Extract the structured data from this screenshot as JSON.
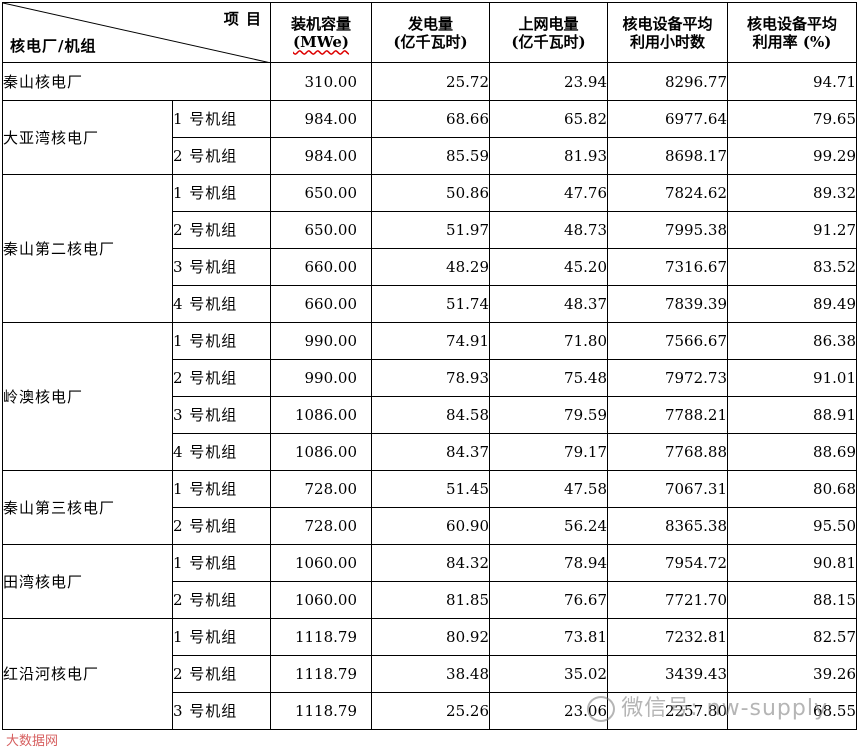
{
  "header": {
    "corner_top": "项 目",
    "corner_bottom": "核电厂/机组",
    "capacity": [
      "装机容量",
      "(MWe)"
    ],
    "generation": [
      "发电量",
      "(亿千瓦时)"
    ],
    "grid": [
      "上网电量",
      "(亿千瓦时)"
    ],
    "hours": [
      "核电设备平均",
      "利用小时数"
    ],
    "rate": [
      "核电设备平均",
      "利用率 (%)"
    ]
  },
  "plants": [
    {
      "name": "秦山核电厂",
      "units": [
        {
          "unit": "",
          "capacity": "310.00",
          "generation": "25.72",
          "grid": "23.94",
          "hours": "8296.77",
          "rate": "94.71"
        }
      ]
    },
    {
      "name": "大亚湾核电厂",
      "units": [
        {
          "unit": "1 号机组",
          "capacity": "984.00",
          "generation": "68.66",
          "grid": "65.82",
          "hours": "6977.64",
          "rate": "79.65"
        },
        {
          "unit": "2 号机组",
          "capacity": "984.00",
          "generation": "85.59",
          "grid": "81.93",
          "hours": "8698.17",
          "rate": "99.29"
        }
      ]
    },
    {
      "name": "秦山第二核电厂",
      "units": [
        {
          "unit": "1 号机组",
          "capacity": "650.00",
          "generation": "50.86",
          "grid": "47.76",
          "hours": "7824.62",
          "rate": "89.32"
        },
        {
          "unit": "2 号机组",
          "capacity": "650.00",
          "generation": "51.97",
          "grid": "48.73",
          "hours": "7995.38",
          "rate": "91.27"
        },
        {
          "unit": "3 号机组",
          "capacity": "660.00",
          "generation": "48.29",
          "grid": "45.20",
          "hours": "7316.67",
          "rate": "83.52"
        },
        {
          "unit": "4 号机组",
          "capacity": "660.00",
          "generation": "51.74",
          "grid": "48.37",
          "hours": "7839.39",
          "rate": "89.49"
        }
      ]
    },
    {
      "name": "岭澳核电厂",
      "units": [
        {
          "unit": "1 号机组",
          "capacity": "990.00",
          "generation": "74.91",
          "grid": "71.80",
          "hours": "7566.67",
          "rate": "86.38"
        },
        {
          "unit": "2 号机组",
          "capacity": "990.00",
          "generation": "78.93",
          "grid": "75.48",
          "hours": "7972.73",
          "rate": "91.01"
        },
        {
          "unit": "3 号机组",
          "capacity": "1086.00",
          "generation": "84.58",
          "grid": "79.59",
          "hours": "7788.21",
          "rate": "88.91"
        },
        {
          "unit": "4 号机组",
          "capacity": "1086.00",
          "generation": "84.37",
          "grid": "79.17",
          "hours": "7768.88",
          "rate": "88.69"
        }
      ]
    },
    {
      "name": "秦山第三核电厂",
      "units": [
        {
          "unit": "1 号机组",
          "capacity": "728.00",
          "generation": "51.45",
          "grid": "47.58",
          "hours": "7067.31",
          "rate": "80.68"
        },
        {
          "unit": "2 号机组",
          "capacity": "728.00",
          "generation": "60.90",
          "grid": "56.24",
          "hours": "8365.38",
          "rate": "95.50"
        }
      ]
    },
    {
      "name": "田湾核电厂",
      "units": [
        {
          "unit": "1 号机组",
          "capacity": "1060.00",
          "generation": "84.32",
          "grid": "78.94",
          "hours": "7954.72",
          "rate": "90.81"
        },
        {
          "unit": "2 号机组",
          "capacity": "1060.00",
          "generation": "81.85",
          "grid": "76.67",
          "hours": "7721.70",
          "rate": "88.15"
        }
      ]
    },
    {
      "name": "红沿河核电厂",
      "units": [
        {
          "unit": "1 号机组",
          "capacity": "1118.79",
          "generation": "80.92",
          "grid": "73.81",
          "hours": "7232.81",
          "rate": "82.57"
        },
        {
          "unit": "2 号机组",
          "capacity": "1118.79",
          "generation": "38.48",
          "grid": "35.02",
          "hours": "3439.43",
          "rate": "39.26"
        },
        {
          "unit": "3 号机组",
          "capacity": "1118.79",
          "generation": "25.26",
          "grid": "23.06",
          "hours": "2257.80",
          "rate": "68.55"
        }
      ]
    }
  ],
  "watermark": {
    "text": "微信号: nw-supply",
    "source": "大数据网",
    "icon": "wechat-icon"
  },
  "colors": {
    "border": "#000000",
    "spellcheck": "#dd0000",
    "watermark": "#787878"
  }
}
